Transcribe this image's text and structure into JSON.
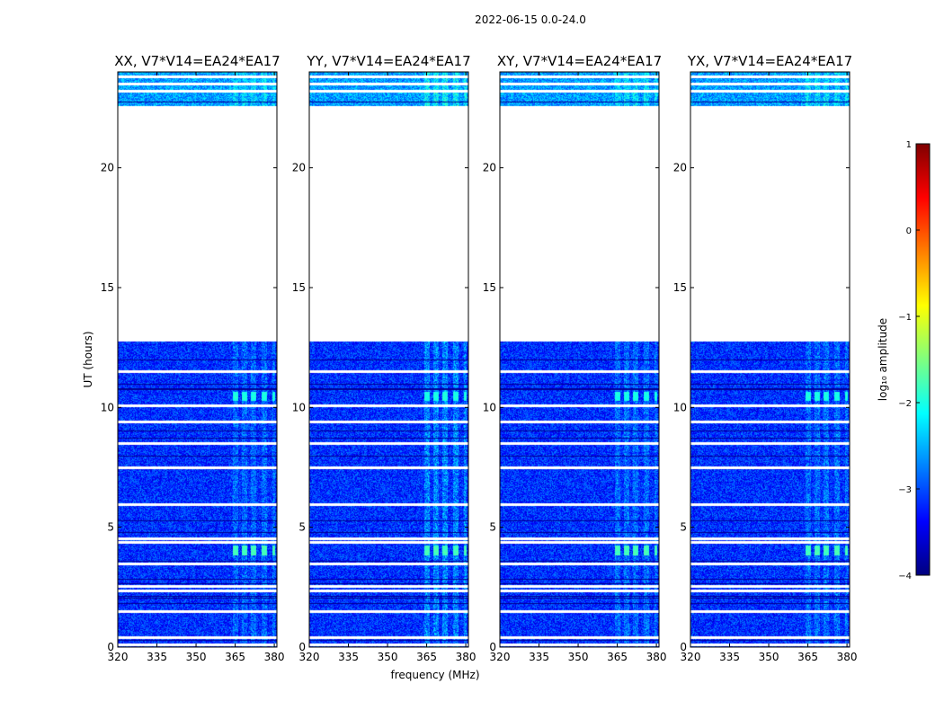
{
  "figure": {
    "suptitle": "2022-06-15 0.0-24.0",
    "xlabel": "frequency (MHz)",
    "ylabel": "UT (hours)"
  },
  "chart_data": {
    "type": "heatmap",
    "x_range": [
      320,
      381
    ],
    "y_range": [
      0,
      24
    ],
    "xticks": [
      320,
      335,
      350,
      365,
      380
    ],
    "yticks": [
      0,
      5,
      10,
      15,
      20
    ],
    "panels": [
      {
        "title": "XX, V7*V14=EA24*EA17",
        "polarization": "XX",
        "show_ylabel": true
      },
      {
        "title": "YY, V7*V14=EA24*EA17",
        "polarization": "YY",
        "show_ylabel": false
      },
      {
        "title": "XY, V7*V14=EA24*EA17",
        "polarization": "XY",
        "show_ylabel": false
      },
      {
        "title": "YX, V7*V14=EA24*EA17",
        "polarization": "YX",
        "show_ylabel": false
      }
    ],
    "data_blocks": [
      {
        "t_start": 0.0,
        "t_end": 12.75,
        "level": -3.15
      },
      {
        "t_start": 22.6,
        "t_end": 24.0,
        "level": -2.6
      }
    ],
    "gaps_hours": [
      0.1,
      0.4,
      1.5,
      2.35,
      2.55,
      3.5,
      4.4,
      4.55,
      5.95,
      7.5,
      8.5,
      9.4,
      10.1,
      11.5,
      23.2,
      23.5,
      23.8
    ],
    "dark_lines_hours": [
      0.3,
      1.85,
      2.05,
      2.15,
      2.65,
      2.85,
      3.6,
      4.8,
      5.3,
      8.0,
      8.75,
      9.05,
      10.75,
      10.8,
      11.0,
      12.0,
      22.75
    ],
    "rfi_channels_mhz": [
      [
        364,
        366
      ],
      [
        367.5,
        369.5
      ],
      [
        371,
        373
      ],
      [
        375,
        377
      ],
      [
        379,
        380
      ]
    ],
    "rfi_bursts": [
      {
        "t_start": 3.85,
        "t_end": 4.25,
        "level": -1.8
      },
      {
        "t_start": 10.3,
        "t_end": 10.65,
        "level": -2.0
      }
    ],
    "colorbar": {
      "label": "log₁₀ amplitude",
      "range": [
        -4,
        1
      ],
      "ticks": [
        1,
        0,
        -1,
        -2,
        -3,
        -4
      ]
    }
  },
  "colors": {
    "colormap": [
      "#00007f",
      "#0000ff",
      "#007fff",
      "#00ffff",
      "#7fff7f",
      "#ffff00",
      "#ff7f00",
      "#ff0000",
      "#7f0000"
    ],
    "background": "#ffffff"
  }
}
